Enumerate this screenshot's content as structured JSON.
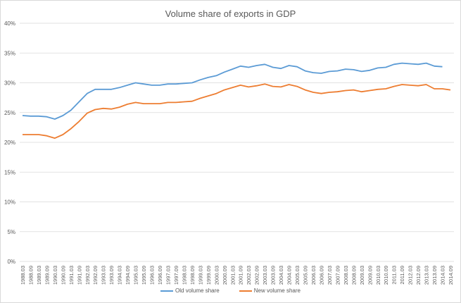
{
  "chart_data": {
    "type": "line",
    "title": "Volume share of exports in GDP",
    "xlabel": "",
    "ylabel": "",
    "ylim": [
      0,
      40
    ],
    "yticks": [
      "0%",
      "5%",
      "10%",
      "15%",
      "20%",
      "25%",
      "30%",
      "35%",
      "40%"
    ],
    "ytick_values": [
      0,
      5,
      10,
      15,
      20,
      25,
      30,
      35,
      40
    ],
    "grid": true,
    "legend_position": "bottom",
    "x": [
      "1988.03",
      "1988.09",
      "1989.03",
      "1989.09",
      "1990.03",
      "1990.09",
      "1991.03",
      "1991.09",
      "1992.03",
      "1992.09",
      "1993.03",
      "1993.09",
      "1994.03",
      "1994.09",
      "1995.03",
      "1995.09",
      "1996.03",
      "1996.09",
      "1997.03",
      "1997.09",
      "1998.03",
      "1998.09",
      "1999.03",
      "1999.09",
      "2000.03",
      "2000.09",
      "2001.03",
      "2001.09",
      "2002.03",
      "2002.09",
      "2003.03",
      "2003.09",
      "2004.03",
      "2004.09",
      "2005.03",
      "2005.09",
      "2006.03",
      "2006.09",
      "2007.03",
      "2007.09",
      "2008.03",
      "2008.09",
      "2009.03",
      "2009.09",
      "2010.03",
      "2010.09",
      "2011.03",
      "2011.09",
      "2012.03",
      "2012.09",
      "2013.03",
      "2013.09",
      "2014.03",
      "2014.09"
    ],
    "series": [
      {
        "name": "Old volume share",
        "color": "#5b9bd5",
        "values": [
          24.5,
          24.4,
          24.4,
          24.3,
          23.9,
          24.5,
          25.4,
          26.8,
          28.2,
          28.9,
          28.9,
          28.9,
          29.2,
          29.6,
          30.0,
          29.8,
          29.6,
          29.6,
          29.8,
          29.8,
          29.9,
          30.0,
          30.5,
          30.9,
          31.2,
          31.8,
          32.3,
          32.8,
          32.6,
          32.9,
          33.1,
          32.6,
          32.4,
          32.9,
          32.7,
          32.0,
          31.7,
          31.6,
          31.9,
          32.0,
          32.3,
          32.2,
          31.9,
          32.1,
          32.5,
          32.6,
          33.1,
          33.3,
          33.2,
          33.1,
          33.3,
          32.8,
          32.7,
          null
        ]
      },
      {
        "name": "New volume share",
        "color": "#ed7d31",
        "values": [
          21.3,
          21.3,
          21.3,
          21.1,
          20.7,
          21.3,
          22.3,
          23.5,
          24.9,
          25.5,
          25.7,
          25.6,
          25.9,
          26.4,
          26.7,
          26.5,
          26.5,
          26.5,
          26.7,
          26.7,
          26.8,
          26.9,
          27.4,
          27.8,
          28.2,
          28.8,
          29.2,
          29.6,
          29.3,
          29.5,
          29.8,
          29.4,
          29.3,
          29.7,
          29.4,
          28.8,
          28.4,
          28.2,
          28.4,
          28.5,
          28.7,
          28.8,
          28.5,
          28.7,
          28.9,
          29.0,
          29.4,
          29.7,
          29.6,
          29.5,
          29.7,
          29.0,
          29.0,
          28.8
        ]
      }
    ]
  }
}
